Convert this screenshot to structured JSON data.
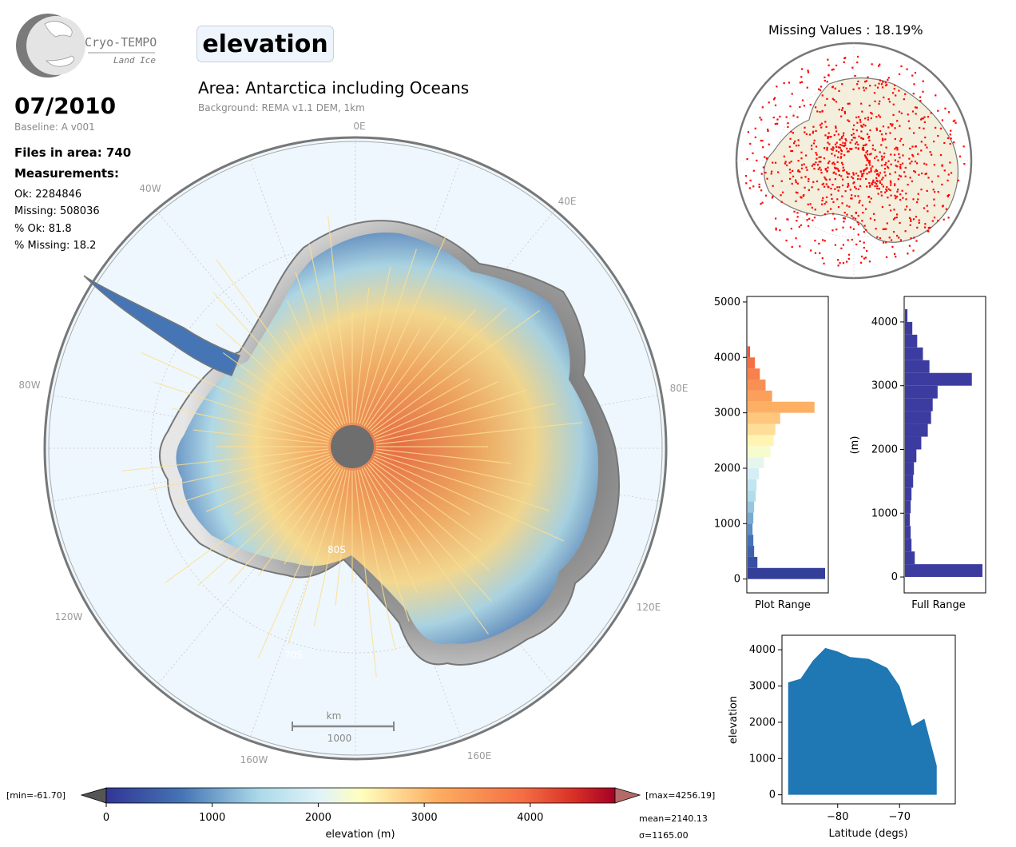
{
  "logo": {
    "name": "Cryo-TEMPO",
    "subtitle": "Land Ice"
  },
  "variable": "elevation",
  "date": "07/2010",
  "baseline": "Baseline: A v001",
  "files_in_area": "Files in area: 740",
  "measurements_label": "Measurements:",
  "stats": {
    "ok": "Ok: 2284846",
    "missing": "Missing: 508036",
    "pct_ok": "% Ok: 81.8",
    "pct_missing": "% Missing: 18.2"
  },
  "area_title": "Area: Antarctica including Oceans",
  "background_note": "Background: REMA v1.1 DEM, 1km",
  "map": {
    "lon_labels": [
      "0E",
      "40E",
      "80E",
      "120E",
      "160E",
      "160W",
      "120W",
      "80W",
      "40W"
    ],
    "lat_labels": [
      "80S",
      "70S"
    ],
    "scale_unit": "km",
    "scale_value": "1000"
  },
  "colorbar": {
    "min_label": "[min=-61.70]",
    "max_label": "[max=4256.19]",
    "ticks": [
      "0",
      "1000",
      "2000",
      "3000",
      "4000"
    ],
    "label": "elevation (m)",
    "mean": "mean=2140.13",
    "sigma": "σ=1165.00"
  },
  "missing_title": "Missing Values : 18.19%",
  "colors": {
    "map_ocean": "#eef7fd",
    "missing": "#ff0000",
    "scatter": "#1f77b4",
    "full_hist": "#3c3ca0"
  },
  "chart_data": [
    {
      "type": "bar",
      "orientation": "horizontal",
      "xlabel": "Plot Range",
      "ylim": [
        -250,
        5100
      ],
      "yticks": [
        0,
        1000,
        2000,
        3000,
        4000,
        5000
      ],
      "bins": [
        0,
        200,
        400,
        600,
        800,
        1000,
        1200,
        1400,
        1600,
        1800,
        2000,
        2200,
        2400,
        2600,
        2800,
        3000,
        3200,
        3400,
        3600,
        3800,
        4000
      ],
      "counts": [
        95,
        12,
        8,
        7,
        6,
        7,
        8,
        10,
        11,
        14,
        20,
        28,
        32,
        34,
        40,
        82,
        30,
        22,
        15,
        9,
        3
      ]
    },
    {
      "type": "bar",
      "orientation": "horizontal",
      "xlabel": "Full Range",
      "ylabel": "(m)",
      "ylim": [
        -250,
        4400
      ],
      "yticks": [
        0,
        1000,
        2000,
        3000,
        4000
      ],
      "bins": [
        0,
        200,
        400,
        600,
        800,
        1000,
        1200,
        1400,
        1600,
        1800,
        2000,
        2200,
        2400,
        2600,
        2800,
        3000,
        3200,
        3400,
        3600,
        3800,
        4000
      ],
      "counts": [
        95,
        12,
        8,
        7,
        6,
        7,
        8,
        10,
        11,
        14,
        20,
        28,
        32,
        34,
        40,
        82,
        30,
        22,
        15,
        9,
        3
      ]
    },
    {
      "type": "scatter",
      "xlabel": "Latitude (degs)",
      "ylabel": "elevation",
      "xlim": [
        -89,
        -61
      ],
      "ylim": [
        -250,
        4400
      ],
      "xticks": [
        -80,
        -70
      ],
      "yticks": [
        0,
        1000,
        2000,
        3000,
        4000
      ],
      "envelope": [
        {
          "lat": -88,
          "top": 3100
        },
        {
          "lat": -86,
          "top": 3200
        },
        {
          "lat": -84,
          "top": 3700
        },
        {
          "lat": -82,
          "top": 4050
        },
        {
          "lat": -80,
          "top": 3950
        },
        {
          "lat": -78,
          "top": 3800
        },
        {
          "lat": -75,
          "top": 3750
        },
        {
          "lat": -72,
          "top": 3500
        },
        {
          "lat": -70,
          "top": 3000
        },
        {
          "lat": -68,
          "top": 1900
        },
        {
          "lat": -66,
          "top": 2100
        },
        {
          "lat": -64,
          "top": 800
        }
      ]
    }
  ]
}
